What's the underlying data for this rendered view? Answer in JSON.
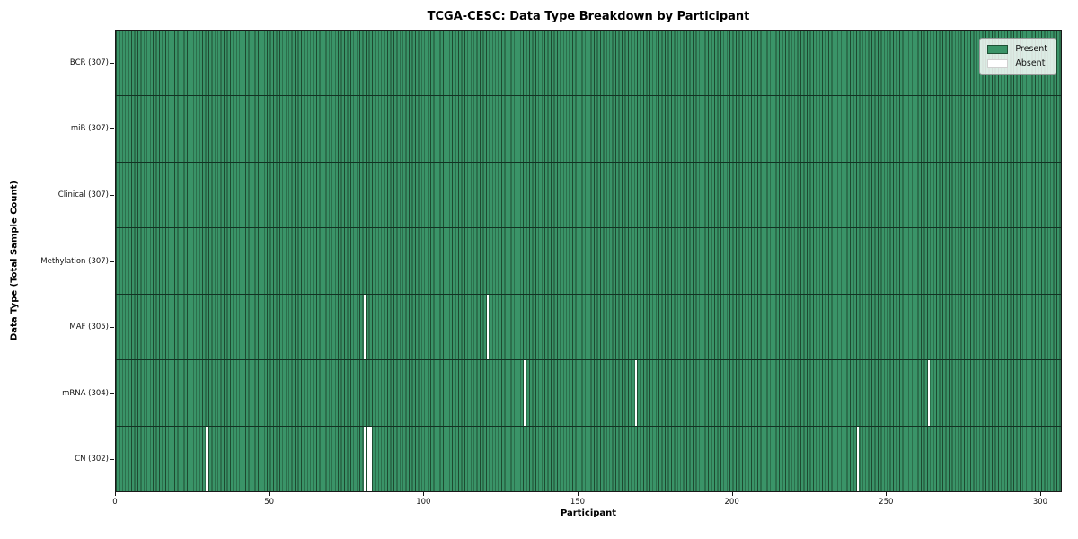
{
  "title": "TCGA-CESC: Data Type Breakdown by Participant",
  "xlabel": "Participant",
  "ylabel": "Data Type (Total Sample Count)",
  "legend": {
    "present_label": "Present",
    "absent_label": "Absent"
  },
  "colors": {
    "present_fill": "#3a9468",
    "cell_edge": "#1d4a30",
    "row_divider": "#123323",
    "absent": "#ffffff",
    "spine": "#1a1a1a",
    "legend_bg": "rgba(255,255,255,0.82)",
    "legend_border": "#9a9a9a"
  },
  "chart_data": {
    "type": "heatmap",
    "title": "TCGA-CESC: Data Type Breakdown by Participant",
    "xlabel": "Participant",
    "ylabel": "Data Type (Total Sample Count)",
    "n_participants": 307,
    "x_ticks": [
      0,
      50,
      100,
      150,
      200,
      250,
      300
    ],
    "x_range": [
      0,
      307
    ],
    "grid": false,
    "legend_position": "upper right",
    "legend_entries": [
      {
        "label": "Present",
        "color": "#3a9468"
      },
      {
        "label": "Absent",
        "color": "#ffffff"
      }
    ],
    "rows": [
      {
        "name": "BCR",
        "label": "BCR (307)",
        "present_count": 307,
        "absent_participants": []
      },
      {
        "name": "miR",
        "label": "miR (307)",
        "present_count": 307,
        "absent_participants": []
      },
      {
        "name": "Clinical",
        "label": "Clinical (307)",
        "present_count": 307,
        "absent_participants": []
      },
      {
        "name": "Methylation",
        "label": "Methylation (307)",
        "present_count": 307,
        "absent_participants": []
      },
      {
        "name": "MAF",
        "label": "MAF (305)",
        "present_count": 305,
        "absent_participants": [
          80,
          120
        ]
      },
      {
        "name": "mRNA",
        "label": "mRNA (304)",
        "present_count": 304,
        "absent_participants": [
          132,
          168,
          263
        ]
      },
      {
        "name": "CN",
        "label": "CN (302)",
        "present_count": 302,
        "absent_participants": [
          29,
          80,
          81,
          82,
          240
        ]
      }
    ]
  }
}
